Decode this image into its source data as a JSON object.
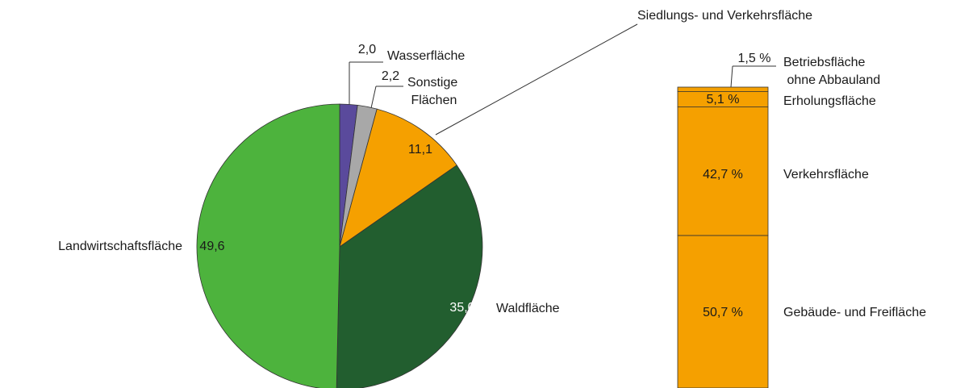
{
  "chart_data": [
    {
      "type": "pie",
      "categories": [
        "Wasserfläche",
        "Sonstige Flächen",
        "Siedlungs- und Verkehrsfläche",
        "Waldfläche",
        "Landwirtschaftsfläche"
      ],
      "values": [
        2.0,
        2.2,
        11.1,
        35.0,
        49.6
      ],
      "value_labels": [
        "2,0",
        "2,2",
        "11,1",
        "35,0",
        "49,6"
      ],
      "colors": [
        "#5a4a9c",
        "#a8a8a8",
        "#f5a000",
        "#225e2f",
        "#4db33d"
      ]
    },
    {
      "type": "stacked_bar",
      "categories": [
        "Gebäude- und Freifläche",
        "Verkehrsfläche",
        "Erholungsfläche",
        "Betriebsfläche ohne Abbauland"
      ],
      "values": [
        50.7,
        42.7,
        5.1,
        1.5
      ],
      "value_labels": [
        "50,7 %",
        "42,7 %",
        "5,1 %",
        "1,5 %"
      ],
      "color": "#f5a000"
    }
  ]
}
